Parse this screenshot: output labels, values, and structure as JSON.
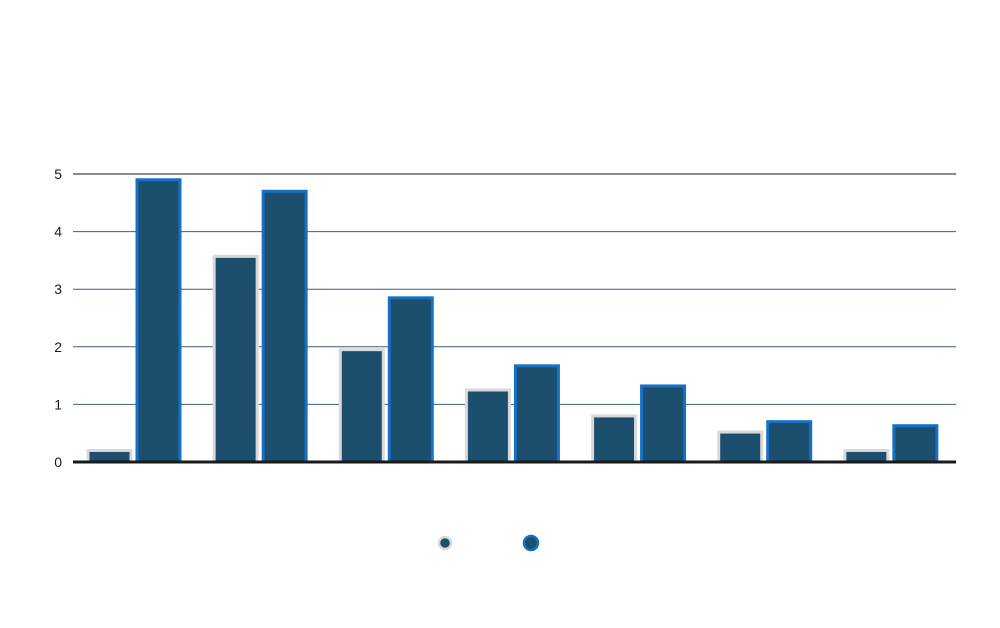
{
  "chart_data": {
    "type": "bar",
    "title": "",
    "xlabel": "",
    "ylabel": "",
    "ylim": [
      0,
      5
    ],
    "yticks": [
      "0",
      "1",
      "2",
      "3",
      "4",
      "5"
    ],
    "categories": [
      "",
      "",
      "",
      "",
      "",
      "",
      ""
    ],
    "series": [
      {
        "values": [
          0.2,
          3.57,
          1.95,
          1.25,
          0.8,
          0.52,
          0.2
        ],
        "fill": "#1c4e6e",
        "stroke": "#d9d9d9"
      },
      {
        "values": [
          4.9,
          4.7,
          2.85,
          1.67,
          1.32,
          0.7,
          0.63
        ],
        "fill": "#1c4e6e",
        "stroke": "#1670c4"
      }
    ],
    "grid": true,
    "legend_position": "bottom-center"
  }
}
